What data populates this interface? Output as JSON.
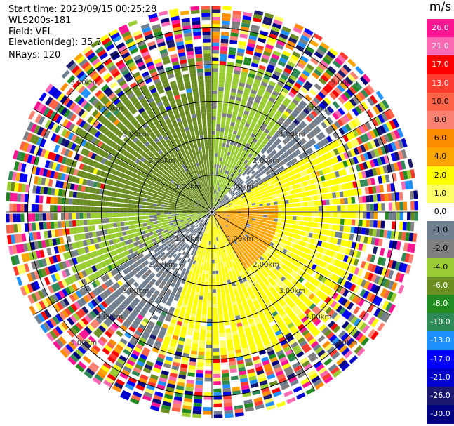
{
  "header": {
    "start_time": "Start time: 2023/09/15 00:25:28",
    "instrument": "WLS200s-181",
    "field": "Field: VEL",
    "elevation": "Elevation(deg): 35.30",
    "nrays": "NRays: 120"
  },
  "colorbar": {
    "unit": "m/s",
    "labels": [
      "26.0",
      "21.0",
      "17.0",
      "13.0",
      "10.0",
      "8.0",
      "6.0",
      "4.0",
      "2.0",
      "1.0",
      "0.0",
      "-1.0",
      "-2.0",
      "-4.0",
      "-6.0",
      "-8.0",
      "-10.0",
      "-13.0",
      "-17.0",
      "-21.0",
      "-26.0",
      "-30.0"
    ],
    "colors": [
      "#ff1493",
      "#ff69b4",
      "#ff0000",
      "#ff3b2f",
      "#ff6347",
      "#fa8072",
      "#ff8c00",
      "#ffa500",
      "#ffff00",
      "#ffff66",
      "#ffffff",
      "#708090",
      "#808080",
      "#9acd32",
      "#6b8e23",
      "#228b22",
      "#2e8b57",
      "#1e90ff",
      "#0000ff",
      "#0000cd",
      "#191970",
      "#000080"
    ]
  },
  "chart_data": {
    "type": "heatmap",
    "projection": "polar PPI",
    "field": "VEL",
    "units": "m/s",
    "nrays": 120,
    "elevation_deg": 35.3,
    "range_rings_km": [
      1.0,
      2.0,
      3.0,
      4.0,
      5.0
    ],
    "ring_labels": [
      "1.00km",
      "2.00km",
      "3.00km",
      "4.00km",
      "5.00km"
    ],
    "spoke_angles_deg": [
      0,
      30,
      60,
      90,
      120,
      150,
      180,
      210,
      240,
      270,
      300,
      330
    ],
    "max_range_km": 5.6,
    "gate_km": 0.1,
    "clean_max_km": 3.6,
    "sectors": [
      {
        "from_deg": 270,
        "to_deg": 360,
        "velocity_ms": -5.0,
        "label": "approaching (green)"
      },
      {
        "from_deg": 0,
        "to_deg": 40,
        "velocity_ms": -2.5,
        "label": "yellow-green"
      },
      {
        "from_deg": 40,
        "to_deg": 60,
        "velocity_ms": -0.5,
        "label": "gray"
      },
      {
        "from_deg": 60,
        "to_deg": 200,
        "velocity_ms": 2.5,
        "label": "receding (yellow)"
      },
      {
        "from_deg": 85,
        "to_deg": 150,
        "velocity_ms": 5.0,
        "label": "orange core",
        "max_km": 1.8
      },
      {
        "from_deg": 200,
        "to_deg": 240,
        "velocity_ms": -0.5,
        "label": "gray"
      },
      {
        "from_deg": 240,
        "to_deg": 270,
        "velocity_ms": -2.5,
        "label": "yellow-green"
      }
    ]
  }
}
